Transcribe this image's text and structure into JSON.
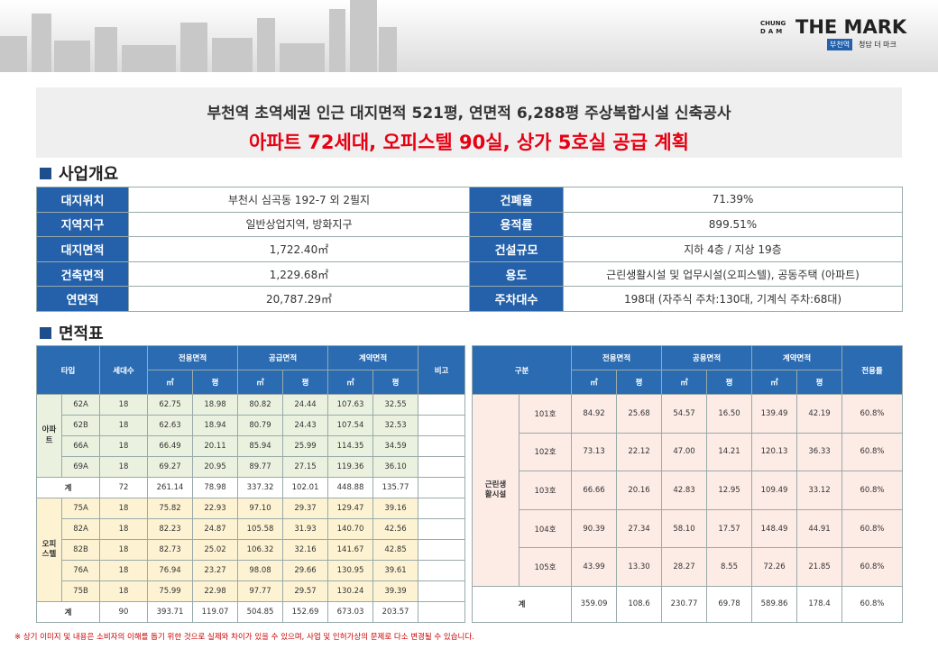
{
  "header": {
    "brand_top": "CHUNG",
    "brand_bottom": "DAM",
    "brand": "THE MARK",
    "badge": "부천역",
    "sub": "청담 더 마크"
  },
  "banner": {
    "line1": "부천역 초역세권 인근 대지면적 521평, 연면적 6,288평 주상복합시설 신축공사",
    "line2": "아파트 72세대, 오피스텔 90실, 상가 5호실 공급 계획"
  },
  "overview": {
    "title": "사업개요",
    "rows": [
      [
        "대지위치",
        "부천시 심곡동 192-7 외 2필지",
        "건폐율",
        "71.39%"
      ],
      [
        "지역지구",
        "일반상업지역, 방화지구",
        "용적률",
        "899.51%"
      ],
      [
        "대지면적",
        "1,722.40㎡",
        "건설규모",
        "지하 4층 / 지상 19층"
      ],
      [
        "건축면적",
        "1,229.68㎡",
        "용도",
        "근린생활시설 및 업무시설(오피스텔), 공동주택 (아파트)"
      ],
      [
        "연면적",
        "20,787.29㎡",
        "주차대수",
        "198대 (자주식 주차:130대, 기계식 주차:68대)"
      ]
    ]
  },
  "area": {
    "title": "면적표",
    "left": {
      "header": [
        "타입",
        "세대수",
        "전용면적",
        "공급면적",
        "계약면적",
        "비고"
      ],
      "units": [
        "㎡",
        "평",
        "㎡",
        "평",
        "㎡",
        "평"
      ],
      "groups": [
        {
          "name": "아파트",
          "rows": [
            [
              "62A",
              "18",
              "62.75",
              "18.98",
              "80.82",
              "24.44",
              "107.63",
              "32.55"
            ],
            [
              "62B",
              "18",
              "62.63",
              "18.94",
              "80.79",
              "24.43",
              "107.54",
              "32.53"
            ],
            [
              "66A",
              "18",
              "66.49",
              "20.11",
              "85.94",
              "25.99",
              "114.35",
              "34.59"
            ],
            [
              "69A",
              "18",
              "69.27",
              "20.95",
              "89.77",
              "27.15",
              "119.36",
              "36.10"
            ]
          ],
          "total": [
            "계",
            "72",
            "261.14",
            "78.98",
            "337.32",
            "102.01",
            "448.88",
            "135.77"
          ]
        },
        {
          "name": "오피스텔",
          "rows": [
            [
              "75A",
              "18",
              "75.82",
              "22.93",
              "97.10",
              "29.37",
              "129.47",
              "39.16"
            ],
            [
              "82A",
              "18",
              "82.23",
              "24.87",
              "105.58",
              "31.93",
              "140.70",
              "42.56"
            ],
            [
              "82B",
              "18",
              "82.73",
              "25.02",
              "106.32",
              "32.16",
              "141.67",
              "42.85"
            ],
            [
              "76A",
              "18",
              "76.94",
              "23.27",
              "98.08",
              "29.66",
              "130.95",
              "39.61"
            ],
            [
              "75B",
              "18",
              "75.99",
              "22.98",
              "97.77",
              "29.57",
              "130.24",
              "39.39"
            ]
          ],
          "total": [
            "계",
            "90",
            "393.71",
            "119.07",
            "504.85",
            "152.69",
            "673.03",
            "203.57"
          ]
        }
      ]
    },
    "right": {
      "header": [
        "구분",
        "전용면적",
        "공용면적",
        "계약면적",
        "전용률"
      ],
      "units": [
        "㎡",
        "평",
        "㎡",
        "평",
        "㎡",
        "평"
      ],
      "group": "근린생활시설",
      "rows": [
        [
          "101호",
          "84.92",
          "25.68",
          "54.57",
          "16.50",
          "139.49",
          "42.19",
          "60.8%"
        ],
        [
          "102호",
          "73.13",
          "22.12",
          "47.00",
          "14.21",
          "120.13",
          "36.33",
          "60.8%"
        ],
        [
          "103호",
          "66.66",
          "20.16",
          "42.83",
          "12.95",
          "109.49",
          "33.12",
          "60.8%"
        ],
        [
          "104호",
          "90.39",
          "27.34",
          "58.10",
          "17.57",
          "148.49",
          "44.91",
          "60.8%"
        ],
        [
          "105호",
          "43.99",
          "13.30",
          "28.27",
          "8.55",
          "72.26",
          "21.85",
          "60.8%"
        ]
      ],
      "total": [
        "계",
        "359.09",
        "108.6",
        "230.77",
        "69.78",
        "589.86",
        "178.4",
        "60.8%"
      ]
    }
  },
  "footnote": "※ 상기 이미지 및 내용은 소비자의 이해를 돕기 위한 것으로 실제와 차이가 있을 수 있으며, 사업 및 인허가상의 문제로 다소 변경될 수 있습니다."
}
